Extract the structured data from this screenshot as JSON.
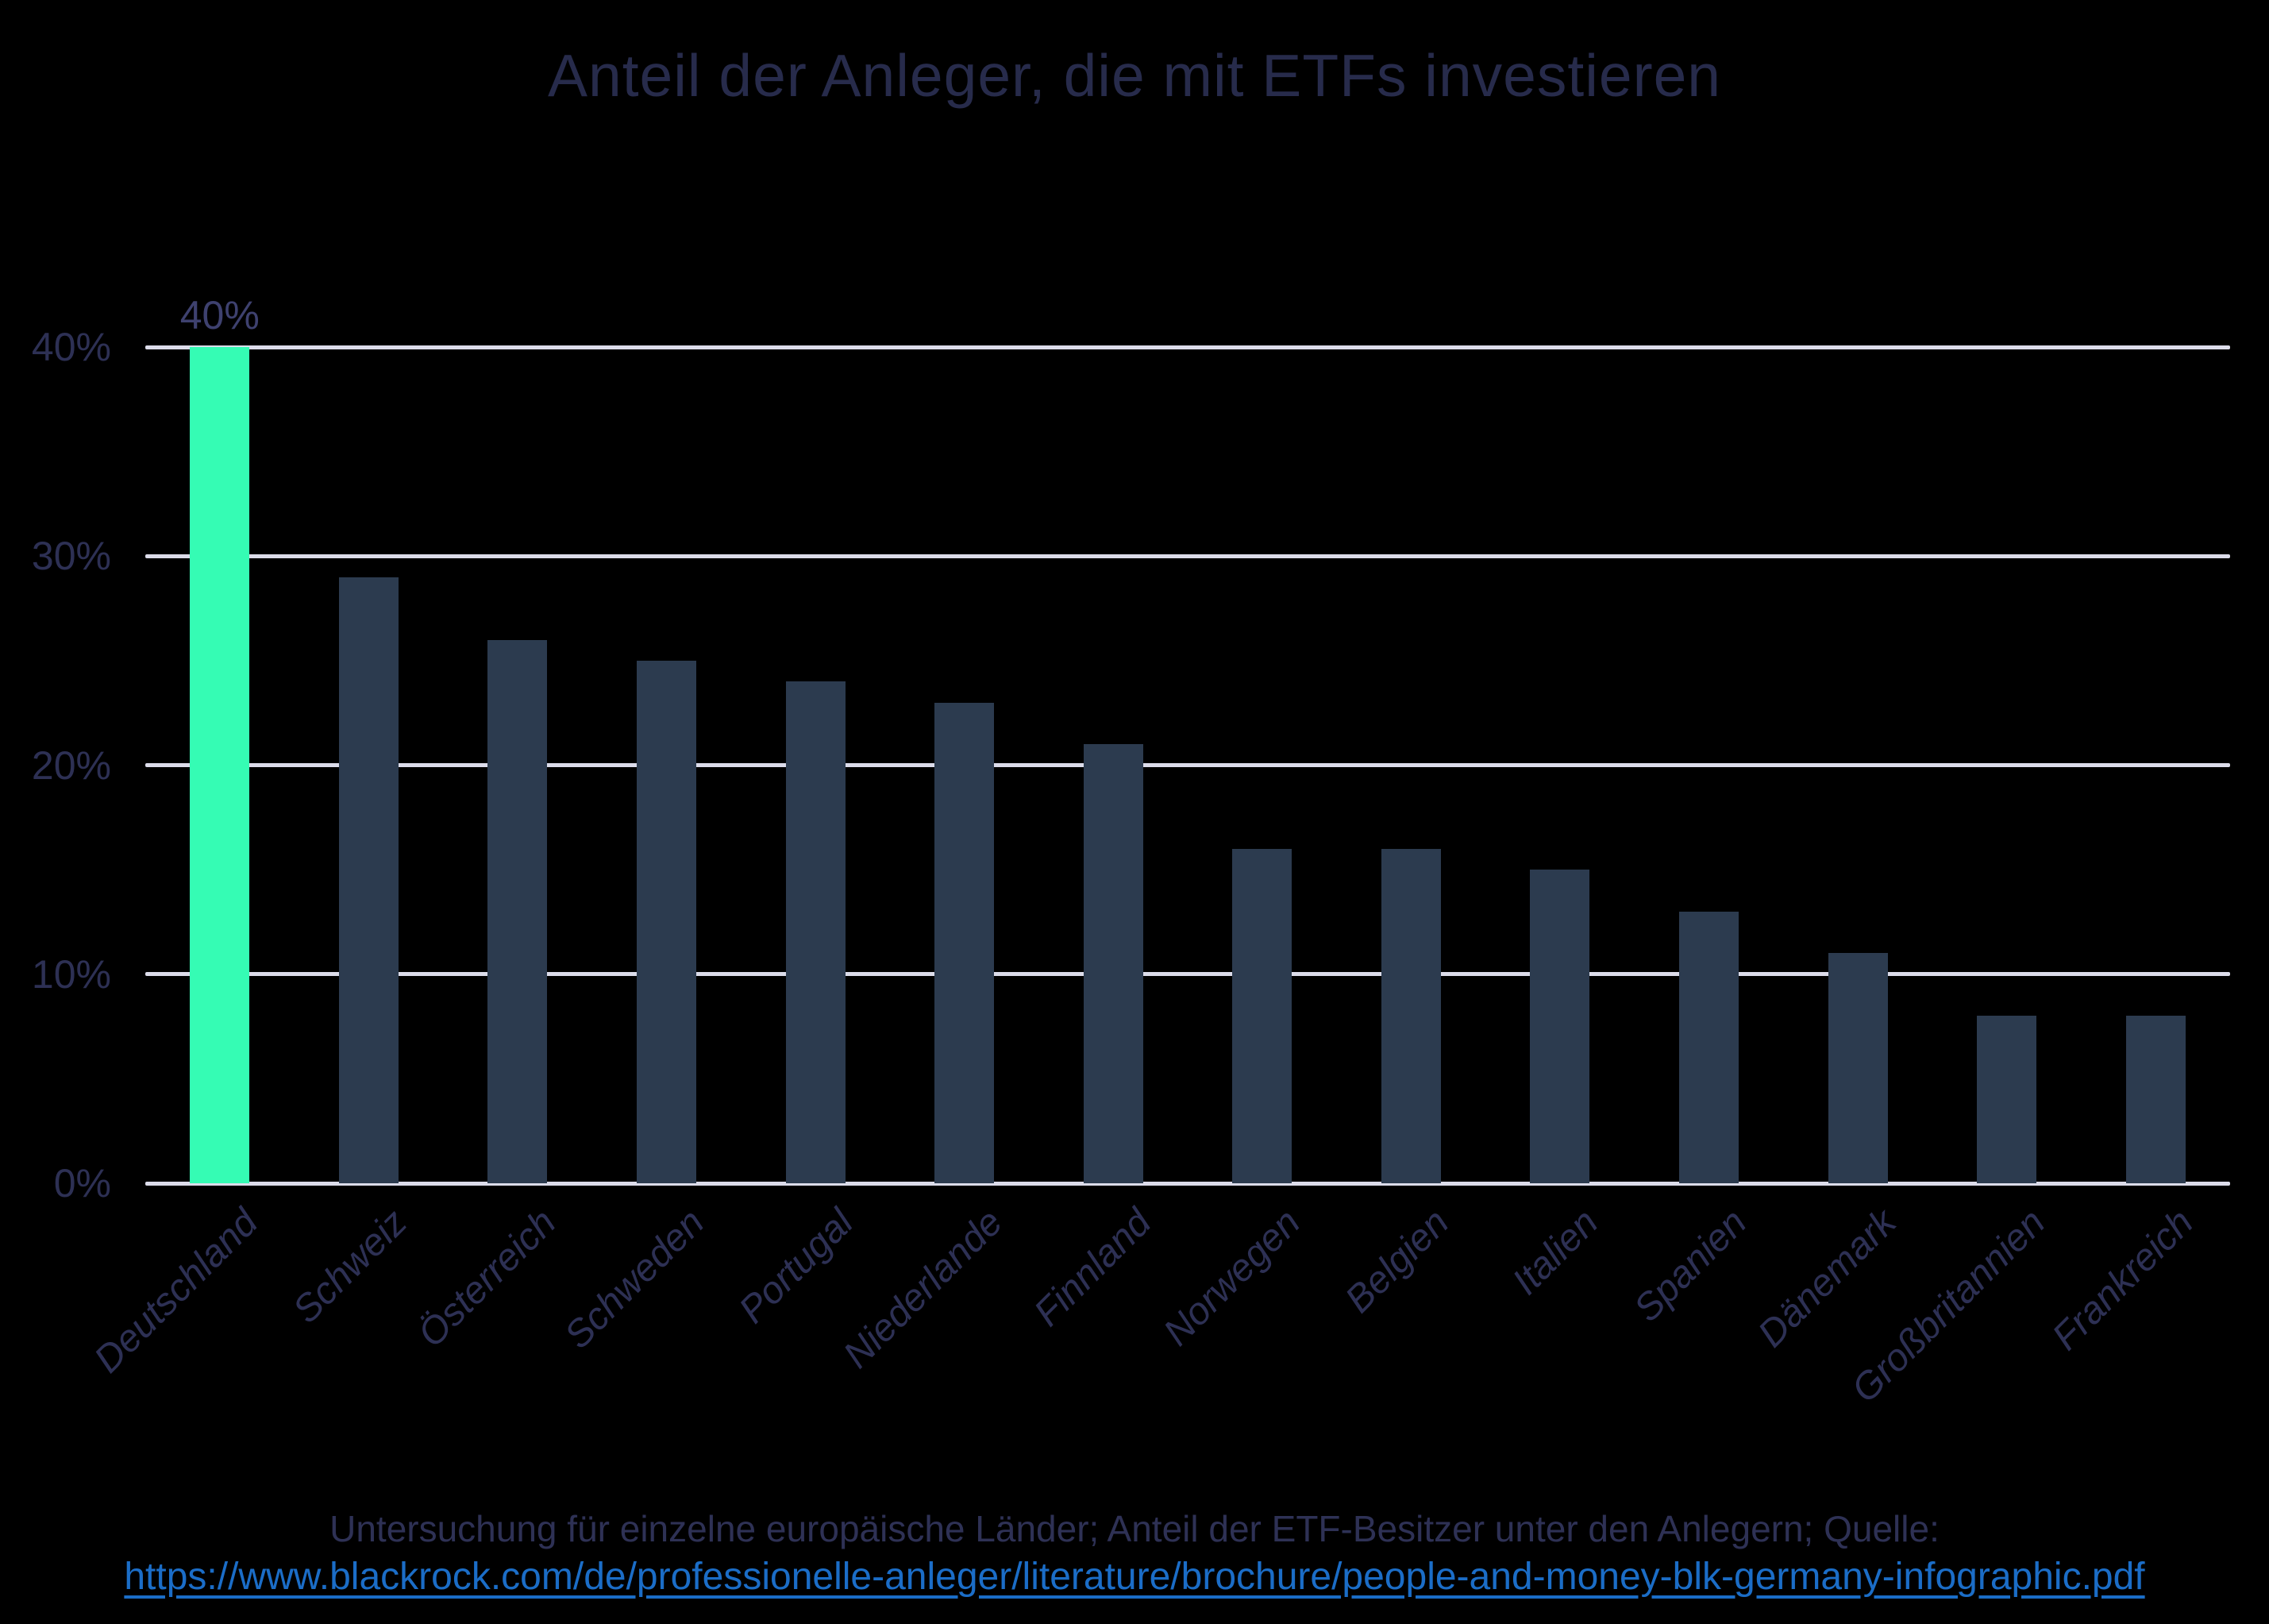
{
  "title": "Anteil der Anleger, die mit ETFs investieren",
  "chart_data": {
    "type": "bar",
    "title": "Anteil der Anleger, die mit ETFs investieren",
    "categories": [
      "Deutschland",
      "Schweiz",
      "Österreich",
      "Schweden",
      "Portugal",
      "Niederlande",
      "Finnland",
      "Norwegen",
      "Belgien",
      "Italien",
      "Spanien",
      "Dänemark",
      "Großbritannien",
      "Frankreich"
    ],
    "values": [
      40,
      29,
      26,
      25,
      24,
      23,
      21,
      16,
      16,
      15,
      13,
      11,
      8,
      8
    ],
    "value_unit": "%",
    "xlabel": "",
    "ylabel": "",
    "ylim": [
      0,
      40
    ],
    "yticks": [
      {
        "label": "0%",
        "value": 0
      },
      {
        "label": "10%",
        "value": 10
      },
      {
        "label": "20%",
        "value": 20
      },
      {
        "label": "30%",
        "value": 30
      },
      {
        "label": "40%",
        "value": 40
      }
    ],
    "grid": "horizontal",
    "legend": "none",
    "highlight": {
      "index": 0,
      "data_label": "40%"
    }
  },
  "colors": {
    "background": "#000000",
    "bar": "#2c3b4f",
    "highlight_bar": "#35fcb4",
    "gridline": "#dcdcea",
    "title_text": "#272b4b",
    "axis_text": "#2d3054",
    "value_label_text": "#3e416f",
    "caption_text": "#2e3155",
    "link": "#1b6dc7"
  },
  "caption": {
    "text": "Untersuchung für einzelne europäische Länder; Anteil der ETF-Besitzer unter den Anlegern; Quelle:",
    "link_text": "https://www.blackrock.com/de/professionelle-anleger/literature/brochure/people-and-money-blk-germany-infographic.pdf"
  }
}
